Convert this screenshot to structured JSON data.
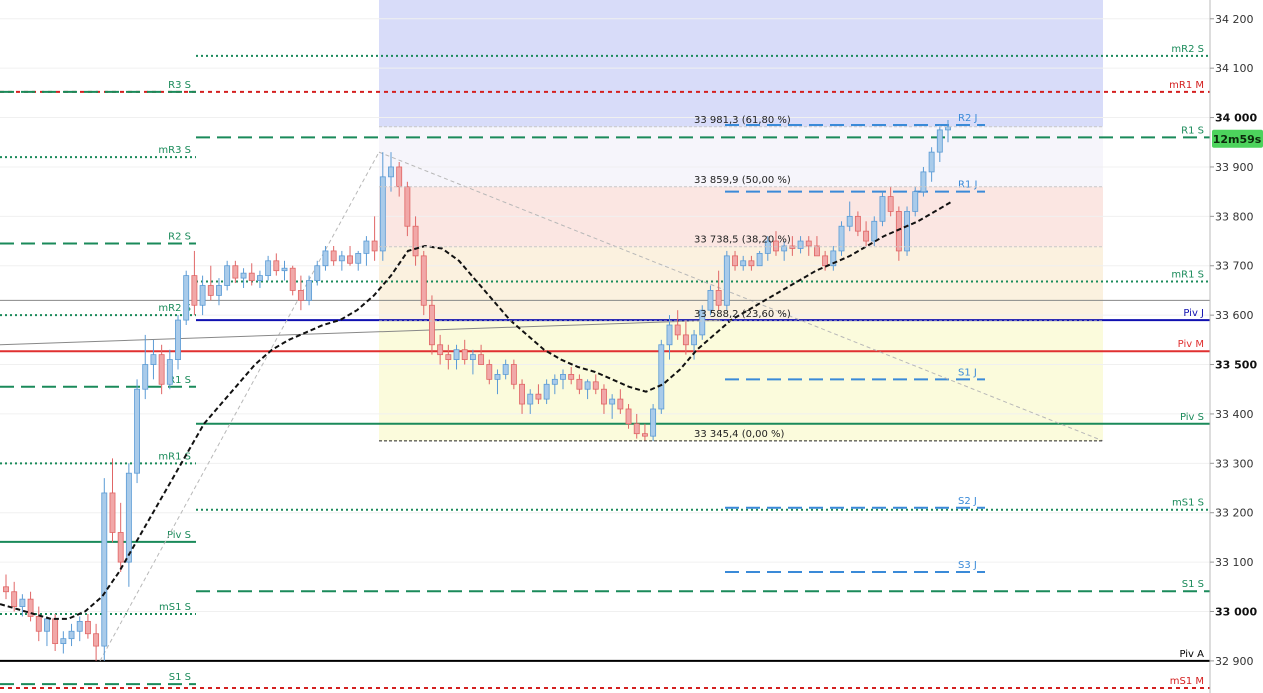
{
  "chart_data": {
    "type": "candlestick",
    "timer": "12m59s",
    "current_price": 33981.3,
    "ylim": [
      32835,
      34238
    ],
    "y_ticks": [
      {
        "value": 34200,
        "label": "34 200"
      },
      {
        "value": 34100,
        "label": "34 100"
      },
      {
        "value": 34000,
        "label": "34 000",
        "bold": true
      },
      {
        "value": 33900,
        "label": "33 900"
      },
      {
        "value": 33800,
        "label": "33 800"
      },
      {
        "value": 33700,
        "label": "33 700"
      },
      {
        "value": 33600,
        "label": "33 600"
      },
      {
        "value": 33500,
        "label": "33 500",
        "bold": true
      },
      {
        "value": 33400,
        "label": "33 400"
      },
      {
        "value": 33300,
        "label": "33 300"
      },
      {
        "value": 33200,
        "label": "33 200"
      },
      {
        "value": 33100,
        "label": "33 100"
      },
      {
        "value": 33000,
        "label": "33 000",
        "bold": true
      },
      {
        "value": 32900,
        "label": "32 900"
      }
    ],
    "fib_zone": {
      "high": 34238,
      "low": 33345.4
    },
    "fibonacci": [
      {
        "value": 33981.3,
        "label": "33 981,3 (61,80 %)"
      },
      {
        "value": 33859.9,
        "label": "33 859,9 (50,00 %)"
      },
      {
        "value": 33738.5,
        "label": "33 738,5 (38,20 %)"
      },
      {
        "value": 33588.2,
        "label": "33 588,2 (23,60 %)"
      },
      {
        "value": 33345.4,
        "label": "33 345,4 (0,00 %)"
      }
    ],
    "levels": [
      {
        "label": "mR2 S",
        "value": 34125,
        "color": "#1a8a5a",
        "style": "dot"
      },
      {
        "label": "mR1 M",
        "value": 34052,
        "color": "#d42020",
        "style": "reddash"
      },
      {
        "label": "R1 S",
        "value": 33960,
        "color": "#1a8a5a",
        "style": "dash"
      },
      {
        "label": "mR1 S",
        "value": 33668,
        "color": "#1a8a5a",
        "style": "dot"
      },
      {
        "label": "Piv J",
        "value": 33590,
        "color": "#1010b0",
        "style": "solid"
      },
      {
        "label": "Piv M",
        "value": 33527,
        "color": "#e03030",
        "style": "solid"
      },
      {
        "label": "Piv S",
        "value": 33380,
        "color": "#1a8a5a",
        "style": "solid"
      },
      {
        "label": "mS1 S",
        "value": 33206,
        "color": "#1a8a5a",
        "style": "dot"
      },
      {
        "label": "S1 S",
        "value": 33041,
        "color": "#1a8a5a",
        "style": "dash"
      },
      {
        "label": "Piv A",
        "value": 32900,
        "color": "#000000",
        "style": "solid"
      },
      {
        "label": "mS1 M",
        "value": 32845,
        "color": "#d42020",
        "style": "reddash"
      }
    ],
    "segments": [
      {
        "label": "R3 S",
        "value": 34052,
        "color": "#1a8a5a",
        "style": "dash"
      },
      {
        "label": "mR3 S",
        "value": 33920,
        "color": "#1a8a5a",
        "style": "dot"
      },
      {
        "label": "R2 S",
        "value": 33745,
        "color": "#1a8a5a",
        "style": "dash"
      },
      {
        "label": "mR2 S",
        "value": 33600,
        "color": "#1a8a5a",
        "style": "dot"
      },
      {
        "label": "R1 S",
        "value": 33455,
        "color": "#1a8a5a",
        "style": "dash"
      },
      {
        "label": "mR1 S",
        "value": 33300,
        "color": "#1a8a5a",
        "style": "dot"
      },
      {
        "label": "Piv S",
        "value": 33141,
        "color": "#1a8a5a",
        "style": "solid"
      },
      {
        "label": "mS1 S",
        "value": 32995,
        "color": "#1a8a5a",
        "style": "dot"
      },
      {
        "label": "S1 S",
        "value": 32853,
        "color": "#1a8a5a",
        "style": "dash"
      }
    ],
    "weekly_levels": [
      {
        "label": "R2 J",
        "value": 33985,
        "color": "#3a8ad8",
        "style": "dash"
      },
      {
        "label": "R1 J",
        "value": 33850,
        "color": "#3a8ad8",
        "style": "dash"
      },
      {
        "label": "S1 J",
        "value": 33470,
        "color": "#3a8ad8",
        "style": "dash"
      },
      {
        "label": "S2 J",
        "value": 33210,
        "color": "#3a8ad8",
        "style": "dash"
      },
      {
        "label": "S3 J",
        "value": 33080,
        "color": "#3a8ad8",
        "style": "dash"
      }
    ],
    "candles": [
      {
        "o": 33050,
        "h": 33075,
        "l": 33025,
        "c": 33040
      },
      {
        "o": 33040,
        "h": 33060,
        "l": 33000,
        "c": 33010
      },
      {
        "o": 33010,
        "h": 33035,
        "l": 32990,
        "c": 33025
      },
      {
        "o": 33025,
        "h": 33040,
        "l": 32980,
        "c": 32990
      },
      {
        "o": 32990,
        "h": 33010,
        "l": 32940,
        "c": 32960
      },
      {
        "o": 32960,
        "h": 32990,
        "l": 32930,
        "c": 32985
      },
      {
        "o": 32985,
        "h": 32995,
        "l": 32920,
        "c": 32935
      },
      {
        "o": 32935,
        "h": 32960,
        "l": 32915,
        "c": 32945
      },
      {
        "o": 32945,
        "h": 32975,
        "l": 32930,
        "c": 32960
      },
      {
        "o": 32960,
        "h": 32990,
        "l": 32940,
        "c": 32980
      },
      {
        "o": 32980,
        "h": 32995,
        "l": 32945,
        "c": 32955
      },
      {
        "o": 32955,
        "h": 32975,
        "l": 32900,
        "c": 32930
      },
      {
        "o": 32930,
        "h": 33270,
        "l": 32900,
        "c": 33240
      },
      {
        "o": 33240,
        "h": 33310,
        "l": 33140,
        "c": 33160
      },
      {
        "o": 33160,
        "h": 33220,
        "l": 33080,
        "c": 33100
      },
      {
        "o": 33100,
        "h": 33300,
        "l": 33050,
        "c": 33280
      },
      {
        "o": 33280,
        "h": 33470,
        "l": 33260,
        "c": 33450
      },
      {
        "o": 33450,
        "h": 33560,
        "l": 33430,
        "c": 33500
      },
      {
        "o": 33500,
        "h": 33550,
        "l": 33470,
        "c": 33520
      },
      {
        "o": 33520,
        "h": 33540,
        "l": 33440,
        "c": 33460
      },
      {
        "o": 33460,
        "h": 33530,
        "l": 33450,
        "c": 33510
      },
      {
        "o": 33510,
        "h": 33600,
        "l": 33490,
        "c": 33590
      },
      {
        "o": 33590,
        "h": 33690,
        "l": 33580,
        "c": 33680
      },
      {
        "o": 33680,
        "h": 33730,
        "l": 33600,
        "c": 33620
      },
      {
        "o": 33620,
        "h": 33680,
        "l": 33600,
        "c": 33660
      },
      {
        "o": 33660,
        "h": 33700,
        "l": 33630,
        "c": 33640
      },
      {
        "o": 33640,
        "h": 33675,
        "l": 33620,
        "c": 33660
      },
      {
        "o": 33660,
        "h": 33710,
        "l": 33650,
        "c": 33700
      },
      {
        "o": 33700,
        "h": 33710,
        "l": 33665,
        "c": 33675
      },
      {
        "o": 33675,
        "h": 33695,
        "l": 33655,
        "c": 33685
      },
      {
        "o": 33685,
        "h": 33705,
        "l": 33660,
        "c": 33670
      },
      {
        "o": 33670,
        "h": 33690,
        "l": 33655,
        "c": 33680
      },
      {
        "o": 33680,
        "h": 33720,
        "l": 33670,
        "c": 33710
      },
      {
        "o": 33710,
        "h": 33725,
        "l": 33680,
        "c": 33690
      },
      {
        "o": 33690,
        "h": 33710,
        "l": 33670,
        "c": 33695
      },
      {
        "o": 33695,
        "h": 33700,
        "l": 33640,
        "c": 33650
      },
      {
        "o": 33650,
        "h": 33680,
        "l": 33610,
        "c": 33630
      },
      {
        "o": 33630,
        "h": 33680,
        "l": 33620,
        "c": 33670
      },
      {
        "o": 33670,
        "h": 33710,
        "l": 33660,
        "c": 33700
      },
      {
        "o": 33700,
        "h": 33740,
        "l": 33690,
        "c": 33730
      },
      {
        "o": 33730,
        "h": 33740,
        "l": 33700,
        "c": 33710
      },
      {
        "o": 33710,
        "h": 33730,
        "l": 33690,
        "c": 33720
      },
      {
        "o": 33720,
        "h": 33740,
        "l": 33700,
        "c": 33705
      },
      {
        "o": 33705,
        "h": 33730,
        "l": 33690,
        "c": 33725
      },
      {
        "o": 33725,
        "h": 33760,
        "l": 33700,
        "c": 33750
      },
      {
        "o": 33750,
        "h": 33800,
        "l": 33710,
        "c": 33730
      },
      {
        "o": 33730,
        "h": 33930,
        "l": 33710,
        "c": 33880
      },
      {
        "o": 33880,
        "h": 33930,
        "l": 33850,
        "c": 33900
      },
      {
        "o": 33900,
        "h": 33910,
        "l": 33840,
        "c": 33860
      },
      {
        "o": 33860,
        "h": 33870,
        "l": 33760,
        "c": 33780
      },
      {
        "o": 33780,
        "h": 33800,
        "l": 33700,
        "c": 33720
      },
      {
        "o": 33720,
        "h": 33730,
        "l": 33600,
        "c": 33620
      },
      {
        "o": 33620,
        "h": 33640,
        "l": 33520,
        "c": 33540
      },
      {
        "o": 33540,
        "h": 33560,
        "l": 33500,
        "c": 33520
      },
      {
        "o": 33520,
        "h": 33540,
        "l": 33490,
        "c": 33510
      },
      {
        "o": 33510,
        "h": 33540,
        "l": 33490,
        "c": 33530
      },
      {
        "o": 33530,
        "h": 33550,
        "l": 33500,
        "c": 33510
      },
      {
        "o": 33510,
        "h": 33530,
        "l": 33480,
        "c": 33520
      },
      {
        "o": 33520,
        "h": 33540,
        "l": 33500,
        "c": 33500
      },
      {
        "o": 33500,
        "h": 33510,
        "l": 33460,
        "c": 33470
      },
      {
        "o": 33470,
        "h": 33490,
        "l": 33440,
        "c": 33480
      },
      {
        "o": 33480,
        "h": 33510,
        "l": 33470,
        "c": 33500
      },
      {
        "o": 33500,
        "h": 33510,
        "l": 33450,
        "c": 33460
      },
      {
        "o": 33460,
        "h": 33470,
        "l": 33400,
        "c": 33420
      },
      {
        "o": 33420,
        "h": 33450,
        "l": 33400,
        "c": 33440
      },
      {
        "o": 33440,
        "h": 33460,
        "l": 33420,
        "c": 33430
      },
      {
        "o": 33430,
        "h": 33470,
        "l": 33420,
        "c": 33460
      },
      {
        "o": 33460,
        "h": 33480,
        "l": 33440,
        "c": 33470
      },
      {
        "o": 33470,
        "h": 33490,
        "l": 33450,
        "c": 33480
      },
      {
        "o": 33480,
        "h": 33495,
        "l": 33460,
        "c": 33470
      },
      {
        "o": 33470,
        "h": 33480,
        "l": 33440,
        "c": 33450
      },
      {
        "o": 33450,
        "h": 33470,
        "l": 33430,
        "c": 33465
      },
      {
        "o": 33465,
        "h": 33480,
        "l": 33440,
        "c": 33450
      },
      {
        "o": 33450,
        "h": 33460,
        "l": 33400,
        "c": 33420
      },
      {
        "o": 33420,
        "h": 33440,
        "l": 33390,
        "c": 33430
      },
      {
        "o": 33430,
        "h": 33450,
        "l": 33400,
        "c": 33410
      },
      {
        "o": 33410,
        "h": 33420,
        "l": 33370,
        "c": 33380
      },
      {
        "o": 33380,
        "h": 33400,
        "l": 33350,
        "c": 33360
      },
      {
        "o": 33360,
        "h": 33380,
        "l": 33345,
        "c": 33355
      },
      {
        "o": 33355,
        "h": 33420,
        "l": 33345,
        "c": 33410
      },
      {
        "o": 33410,
        "h": 33550,
        "l": 33400,
        "c": 33540
      },
      {
        "o": 33540,
        "h": 33600,
        "l": 33510,
        "c": 33580
      },
      {
        "o": 33580,
        "h": 33610,
        "l": 33550,
        "c": 33560
      },
      {
        "o": 33560,
        "h": 33590,
        "l": 33520,
        "c": 33540
      },
      {
        "o": 33540,
        "h": 33570,
        "l": 33510,
        "c": 33560
      },
      {
        "o": 33560,
        "h": 33620,
        "l": 33550,
        "c": 33610
      },
      {
        "o": 33610,
        "h": 33660,
        "l": 33600,
        "c": 33650
      },
      {
        "o": 33650,
        "h": 33690,
        "l": 33610,
        "c": 33620
      },
      {
        "o": 33620,
        "h": 33730,
        "l": 33610,
        "c": 33720
      },
      {
        "o": 33720,
        "h": 33730,
        "l": 33690,
        "c": 33700
      },
      {
        "o": 33700,
        "h": 33720,
        "l": 33690,
        "c": 33710
      },
      {
        "o": 33710,
        "h": 33720,
        "l": 33690,
        "c": 33700
      },
      {
        "o": 33700,
        "h": 33730,
        "l": 33700,
        "c": 33725
      },
      {
        "o": 33725,
        "h": 33760,
        "l": 33710,
        "c": 33750
      },
      {
        "o": 33750,
        "h": 33770,
        "l": 33720,
        "c": 33730
      },
      {
        "o": 33730,
        "h": 33750,
        "l": 33710,
        "c": 33740
      },
      {
        "o": 33740,
        "h": 33760,
        "l": 33720,
        "c": 33735
      },
      {
        "o": 33735,
        "h": 33760,
        "l": 33725,
        "c": 33750
      },
      {
        "o": 33750,
        "h": 33760,
        "l": 33720,
        "c": 33740
      },
      {
        "o": 33740,
        "h": 33760,
        "l": 33720,
        "c": 33720
      },
      {
        "o": 33720,
        "h": 33730,
        "l": 33690,
        "c": 33700
      },
      {
        "o": 33700,
        "h": 33740,
        "l": 33690,
        "c": 33730
      },
      {
        "o": 33730,
        "h": 33790,
        "l": 33720,
        "c": 33780
      },
      {
        "o": 33780,
        "h": 33830,
        "l": 33770,
        "c": 33800
      },
      {
        "o": 33800,
        "h": 33810,
        "l": 33760,
        "c": 33770
      },
      {
        "o": 33770,
        "h": 33790,
        "l": 33740,
        "c": 33750
      },
      {
        "o": 33750,
        "h": 33800,
        "l": 33740,
        "c": 33790
      },
      {
        "o": 33790,
        "h": 33850,
        "l": 33780,
        "c": 33840
      },
      {
        "o": 33840,
        "h": 33860,
        "l": 33800,
        "c": 33810
      },
      {
        "o": 33810,
        "h": 33820,
        "l": 33710,
        "c": 33730
      },
      {
        "o": 33730,
        "h": 33820,
        "l": 33720,
        "c": 33810
      },
      {
        "o": 33810,
        "h": 33860,
        "l": 33800,
        "c": 33850
      },
      {
        "o": 33850,
        "h": 33900,
        "l": 33840,
        "c": 33890
      },
      {
        "o": 33890,
        "h": 33940,
        "l": 33870,
        "c": 33930
      },
      {
        "o": 33930,
        "h": 33985,
        "l": 33910,
        "c": 33975
      },
      {
        "o": 33975,
        "h": 33995,
        "l": 33950,
        "c": 33981.3
      }
    ],
    "ema_values": [
      33015,
      33005,
      32995,
      32985,
      32985,
      33000,
      33030,
      33080,
      33140,
      33200,
      33260,
      33320,
      33380,
      33420,
      33460,
      33500,
      33530,
      33550,
      33565,
      33580,
      33590,
      33610,
      33640,
      33680,
      33730,
      33740,
      33735,
      33710,
      33670,
      33630,
      33590,
      33560,
      33530,
      33510,
      33495,
      33485,
      33470,
      33455,
      33445,
      33460,
      33490,
      33530,
      33560,
      33590,
      33610,
      33630,
      33650,
      33670,
      33690,
      33705,
      33720,
      33740,
      33760,
      33775,
      33790,
      33810,
      33830
    ]
  }
}
